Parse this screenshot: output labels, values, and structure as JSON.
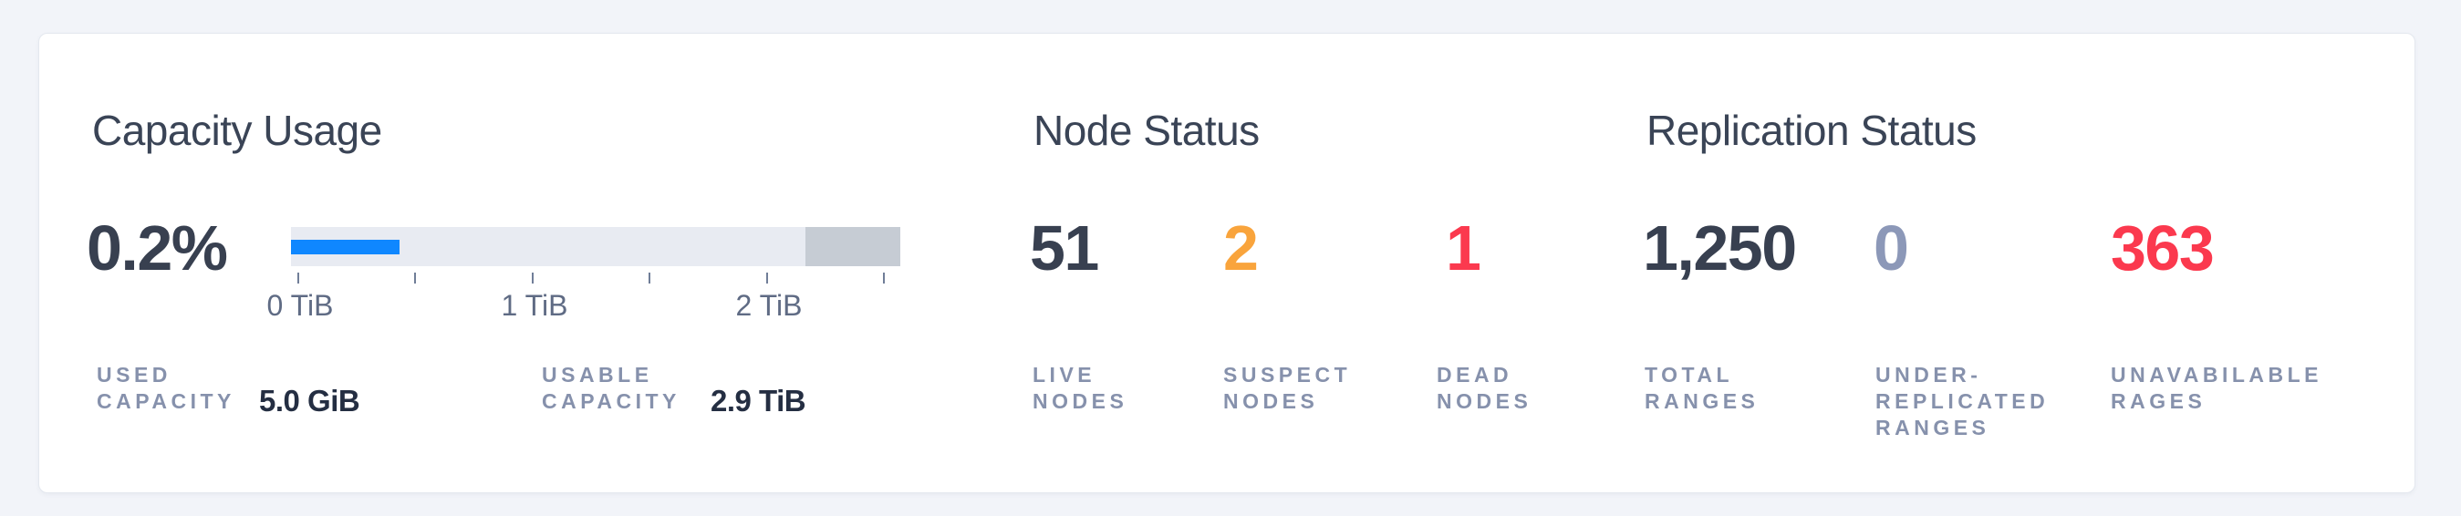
{
  "page": {
    "background": "#f2f4f9"
  },
  "card": {
    "background": "#ffffff",
    "border": "#e4e8ef"
  },
  "colors": {
    "title": "#3a4456",
    "number_dark": "#384050",
    "number_warning": "#f9a43c",
    "number_danger": "#fb394e",
    "number_muted": "#8c98b8",
    "stat_label": "#8691ac",
    "stat_value": "#242e42",
    "bar_track": "#e8ebf2",
    "bar_used": "#0f87ff",
    "bar_other": "#c6ccd4",
    "axis_label": "#5f6b84"
  },
  "capacity": {
    "title": "Capacity Usage",
    "used_percent": "0.2%",
    "bar": {
      "used_width_pct": 17.8,
      "other_width_pct": 15.6
    },
    "axis": {
      "tick_labels": [
        "0 TiB",
        "1 TiB",
        "2 TiB"
      ]
    },
    "stats": [
      {
        "label_lines": [
          "USED",
          "CAPACITY"
        ],
        "value": "5.0 GiB"
      },
      {
        "label_lines": [
          "USABLE",
          "CAPACITY"
        ],
        "value": "2.9 TiB"
      }
    ]
  },
  "node_status": {
    "title": "Node Status",
    "stats": [
      {
        "value": "51",
        "label_lines": [
          "LIVE",
          "NODES"
        ],
        "tone": "dark"
      },
      {
        "value": "2",
        "label_lines": [
          "SUSPECT",
          "NODES"
        ],
        "tone": "warning"
      },
      {
        "value": "1",
        "label_lines": [
          "DEAD",
          "NODES"
        ],
        "tone": "danger"
      }
    ]
  },
  "replication_status": {
    "title": "Replication Status",
    "stats": [
      {
        "value": "1,250",
        "label_lines": [
          "TOTAL",
          "RANGES"
        ],
        "tone": "dark"
      },
      {
        "value": "0",
        "label_lines": [
          "UNDER-",
          "REPLICATED",
          "RANGES"
        ],
        "tone": "muted"
      },
      {
        "value": "363",
        "label_lines": [
          "UNAVABILABLE",
          "RAGES"
        ],
        "tone": "danger"
      }
    ]
  },
  "chart_data": {
    "type": "bar",
    "title": "Capacity Usage",
    "used_percent_label": "0.2%",
    "used_capacity": "5.0 GiB",
    "usable_capacity": "2.9 TiB",
    "bar_used_fraction_of_track": 0.178,
    "bar_reserved_fraction_of_track": 0.156,
    "axis_ticks_tib": [
      0,
      0.5,
      1,
      1.5,
      2,
      2.5
    ],
    "axis_labeled_ticks": [
      "0 TiB",
      "1 TiB",
      "2 TiB"
    ],
    "grid": false
  }
}
